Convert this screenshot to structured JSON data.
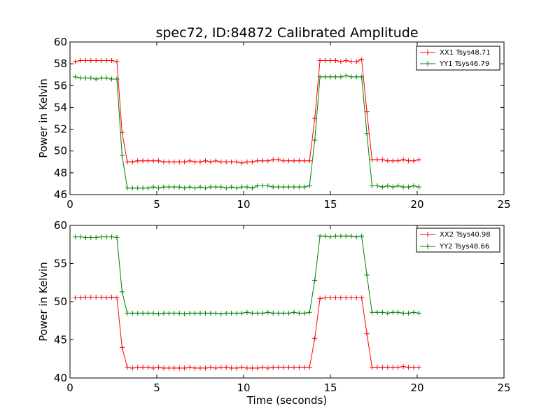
{
  "chart_data": [
    {
      "type": "line",
      "title": "spec72, ID:84872 Calibrated Amplitude",
      "xlabel": "",
      "ylabel": "Power in Kelvin",
      "xlim": [
        0,
        25
      ],
      "ylim": [
        46,
        60
      ],
      "xticks": [
        0,
        5,
        10,
        15,
        20,
        25
      ],
      "yticks": [
        46,
        48,
        50,
        52,
        54,
        56,
        58,
        60
      ],
      "grid": false,
      "legend_position": "top-right",
      "series": [
        {
          "name": "XX1 Tsys48.71",
          "color": "#ff0000",
          "marker": "plus",
          "x": [
            0.3,
            0.6,
            0.9,
            1.2,
            1.5,
            1.8,
            2.1,
            2.4,
            2.7,
            3.0,
            3.3,
            3.6,
            3.9,
            4.2,
            4.5,
            4.8,
            5.1,
            5.4,
            5.7,
            6.0,
            6.3,
            6.6,
            6.9,
            7.2,
            7.5,
            7.8,
            8.1,
            8.4,
            8.7,
            9.0,
            9.3,
            9.6,
            9.9,
            10.2,
            10.5,
            10.8,
            11.1,
            11.4,
            11.7,
            12.0,
            12.3,
            12.6,
            12.9,
            13.2,
            13.5,
            13.8,
            14.1,
            14.4,
            14.7,
            15.0,
            15.3,
            15.6,
            15.9,
            16.2,
            16.5,
            16.8,
            17.1,
            17.4,
            17.7,
            18.0,
            18.3,
            18.6,
            18.9,
            19.2,
            19.5,
            19.8,
            20.1
          ],
          "y": [
            58.2,
            58.3,
            58.3,
            58.3,
            58.3,
            58.3,
            58.3,
            58.3,
            58.2,
            51.7,
            49.0,
            49.0,
            49.1,
            49.1,
            49.1,
            49.1,
            49.1,
            49.0,
            49.0,
            49.0,
            49.0,
            49.0,
            49.1,
            49.0,
            49.0,
            49.1,
            49.0,
            49.1,
            49.0,
            49.0,
            49.0,
            49.0,
            48.9,
            49.0,
            49.0,
            49.1,
            49.1,
            49.1,
            49.2,
            49.2,
            49.1,
            49.1,
            49.1,
            49.1,
            49.1,
            49.1,
            53.0,
            58.3,
            58.3,
            58.3,
            58.3,
            58.2,
            58.3,
            58.2,
            58.2,
            58.4,
            53.6,
            49.2,
            49.2,
            49.2,
            49.1,
            49.1,
            49.1,
            49.2,
            49.1,
            49.1,
            49.2
          ]
        },
        {
          "name": "YY1 Tsys46.79",
          "color": "#008000",
          "marker": "plus",
          "x": [
            0.3,
            0.6,
            0.9,
            1.2,
            1.5,
            1.8,
            2.1,
            2.4,
            2.7,
            3.0,
            3.3,
            3.6,
            3.9,
            4.2,
            4.5,
            4.8,
            5.1,
            5.4,
            5.7,
            6.0,
            6.3,
            6.6,
            6.9,
            7.2,
            7.5,
            7.8,
            8.1,
            8.4,
            8.7,
            9.0,
            9.3,
            9.6,
            9.9,
            10.2,
            10.5,
            10.8,
            11.1,
            11.4,
            11.7,
            12.0,
            12.3,
            12.6,
            12.9,
            13.2,
            13.5,
            13.8,
            14.1,
            14.4,
            14.7,
            15.0,
            15.3,
            15.6,
            15.9,
            16.2,
            16.5,
            16.8,
            17.1,
            17.4,
            17.7,
            18.0,
            18.3,
            18.6,
            18.9,
            19.2,
            19.5,
            19.8,
            20.1
          ],
          "y": [
            56.8,
            56.7,
            56.7,
            56.7,
            56.6,
            56.7,
            56.7,
            56.6,
            56.6,
            49.6,
            46.6,
            46.6,
            46.6,
            46.6,
            46.6,
            46.7,
            46.6,
            46.7,
            46.7,
            46.7,
            46.7,
            46.6,
            46.7,
            46.6,
            46.7,
            46.6,
            46.7,
            46.7,
            46.7,
            46.6,
            46.7,
            46.6,
            46.7,
            46.7,
            46.6,
            46.8,
            46.8,
            46.8,
            46.7,
            46.7,
            46.7,
            46.7,
            46.7,
            46.7,
            46.7,
            46.8,
            51.0,
            56.8,
            56.8,
            56.8,
            56.8,
            56.8,
            56.9,
            56.8,
            56.8,
            56.8,
            51.6,
            46.8,
            46.8,
            46.7,
            46.8,
            46.7,
            46.8,
            46.7,
            46.7,
            46.8,
            46.7
          ]
        }
      ]
    },
    {
      "type": "line",
      "title": "",
      "xlabel": "Time (seconds)",
      "ylabel": "Power in Kelvin",
      "xlim": [
        0,
        25
      ],
      "ylim": [
        40,
        60
      ],
      "xticks": [
        0,
        5,
        10,
        15,
        20,
        25
      ],
      "yticks": [
        40,
        45,
        50,
        55,
        60
      ],
      "grid": false,
      "legend_position": "top-right",
      "series": [
        {
          "name": "XX2 Tsys40.98",
          "color": "#ff0000",
          "marker": "plus",
          "x": [
            0.3,
            0.6,
            0.9,
            1.2,
            1.5,
            1.8,
            2.1,
            2.4,
            2.7,
            3.0,
            3.3,
            3.6,
            3.9,
            4.2,
            4.5,
            4.8,
            5.1,
            5.4,
            5.7,
            6.0,
            6.3,
            6.6,
            6.9,
            7.2,
            7.5,
            7.8,
            8.1,
            8.4,
            8.7,
            9.0,
            9.3,
            9.6,
            9.9,
            10.2,
            10.5,
            10.8,
            11.1,
            11.4,
            11.7,
            12.0,
            12.3,
            12.6,
            12.9,
            13.2,
            13.5,
            13.8,
            14.1,
            14.4,
            14.7,
            15.0,
            15.3,
            15.6,
            15.9,
            16.2,
            16.5,
            16.8,
            17.1,
            17.4,
            17.7,
            18.0,
            18.3,
            18.6,
            18.9,
            19.2,
            19.5,
            19.8,
            20.1
          ],
          "y": [
            50.5,
            50.5,
            50.6,
            50.6,
            50.6,
            50.6,
            50.5,
            50.6,
            50.5,
            44.0,
            41.4,
            41.3,
            41.4,
            41.4,
            41.4,
            41.3,
            41.4,
            41.3,
            41.3,
            41.3,
            41.3,
            41.3,
            41.4,
            41.3,
            41.3,
            41.3,
            41.4,
            41.3,
            41.4,
            41.4,
            41.3,
            41.3,
            41.4,
            41.3,
            41.3,
            41.3,
            41.4,
            41.3,
            41.4,
            41.4,
            41.4,
            41.4,
            41.4,
            41.4,
            41.4,
            41.4,
            45.2,
            50.4,
            50.5,
            50.5,
            50.5,
            50.5,
            50.5,
            50.5,
            50.5,
            50.5,
            45.8,
            41.4,
            41.4,
            41.4,
            41.4,
            41.4,
            41.4,
            41.5,
            41.4,
            41.4,
            41.4
          ]
        },
        {
          "name": "YY2 Tsys48.66",
          "color": "#008000",
          "marker": "plus",
          "x": [
            0.3,
            0.6,
            0.9,
            1.2,
            1.5,
            1.8,
            2.1,
            2.4,
            2.7,
            3.0,
            3.3,
            3.6,
            3.9,
            4.2,
            4.5,
            4.8,
            5.1,
            5.4,
            5.7,
            6.0,
            6.3,
            6.6,
            6.9,
            7.2,
            7.5,
            7.8,
            8.1,
            8.4,
            8.7,
            9.0,
            9.3,
            9.6,
            9.9,
            10.2,
            10.5,
            10.8,
            11.1,
            11.4,
            11.7,
            12.0,
            12.3,
            12.6,
            12.9,
            13.2,
            13.5,
            13.8,
            14.1,
            14.4,
            14.7,
            15.0,
            15.3,
            15.6,
            15.9,
            16.2,
            16.5,
            16.8,
            17.1,
            17.4,
            17.7,
            18.0,
            18.3,
            18.6,
            18.9,
            19.2,
            19.5,
            19.8,
            20.1
          ],
          "y": [
            58.5,
            58.5,
            58.4,
            58.4,
            58.4,
            58.5,
            58.5,
            58.5,
            58.4,
            51.3,
            48.5,
            48.5,
            48.5,
            48.5,
            48.5,
            48.5,
            48.4,
            48.5,
            48.5,
            48.5,
            48.5,
            48.4,
            48.5,
            48.5,
            48.5,
            48.5,
            48.5,
            48.5,
            48.4,
            48.5,
            48.5,
            48.5,
            48.5,
            48.6,
            48.5,
            48.5,
            48.5,
            48.6,
            48.5,
            48.5,
            48.5,
            48.5,
            48.6,
            48.5,
            48.5,
            48.6,
            52.8,
            58.6,
            58.6,
            58.5,
            58.6,
            58.6,
            58.6,
            58.6,
            58.5,
            58.6,
            53.5,
            48.6,
            48.6,
            48.6,
            48.5,
            48.6,
            48.6,
            48.5,
            48.5,
            48.6,
            48.5
          ]
        }
      ]
    }
  ]
}
